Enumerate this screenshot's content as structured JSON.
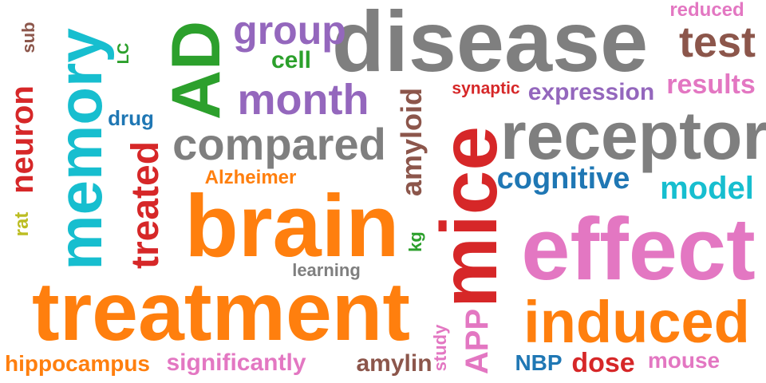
{
  "palette": {
    "gray": "#7f7f7f",
    "orange": "#ff7f0e",
    "green": "#2ca02c",
    "pink": "#e377c2",
    "purple": "#9467bd",
    "red": "#d62728",
    "blue": "#1f77b4",
    "cyan": "#17becf",
    "olive": "#bcbd22",
    "brown": "#8c564b"
  },
  "words": [
    {
      "text": "disease",
      "color": "gray"
    },
    {
      "text": "treatment",
      "color": "orange"
    },
    {
      "text": "brain",
      "color": "orange"
    },
    {
      "text": "mice",
      "color": "red"
    },
    {
      "text": "effect",
      "color": "pink"
    },
    {
      "text": "memory",
      "color": "cyan"
    },
    {
      "text": "receptor",
      "color": "gray"
    },
    {
      "text": "AD",
      "color": "green"
    },
    {
      "text": "induced",
      "color": "orange"
    },
    {
      "text": "compared",
      "color": "gray"
    },
    {
      "text": "month",
      "color": "purple"
    },
    {
      "text": "group",
      "color": "purple"
    },
    {
      "text": "test",
      "color": "brown"
    },
    {
      "text": "treated",
      "color": "red"
    },
    {
      "text": "neuron",
      "color": "red"
    },
    {
      "text": "amyloid",
      "color": "brown"
    },
    {
      "text": "cognitive",
      "color": "blue"
    },
    {
      "text": "model",
      "color": "cyan"
    },
    {
      "text": "results",
      "color": "pink"
    },
    {
      "text": "expression",
      "color": "purple"
    },
    {
      "text": "APP",
      "color": "pink"
    },
    {
      "text": "cell",
      "color": "green"
    },
    {
      "text": "Alzheimer",
      "color": "orange"
    },
    {
      "text": "significantly",
      "color": "pink"
    },
    {
      "text": "hippocampus",
      "color": "orange"
    },
    {
      "text": "amylin",
      "color": "brown"
    },
    {
      "text": "dose",
      "color": "red"
    },
    {
      "text": "mouse",
      "color": "pink"
    },
    {
      "text": "synaptic",
      "color": "red"
    },
    {
      "text": "reduced",
      "color": "pink"
    },
    {
      "text": "drug",
      "color": "blue"
    },
    {
      "text": "NBP",
      "color": "blue"
    },
    {
      "text": "learning",
      "color": "gray"
    },
    {
      "text": "study",
      "color": "pink"
    },
    {
      "text": "LC",
      "color": "green"
    },
    {
      "text": "sub",
      "color": "brown"
    },
    {
      "text": "kg",
      "color": "green"
    },
    {
      "text": "rat",
      "color": "olive"
    }
  ]
}
